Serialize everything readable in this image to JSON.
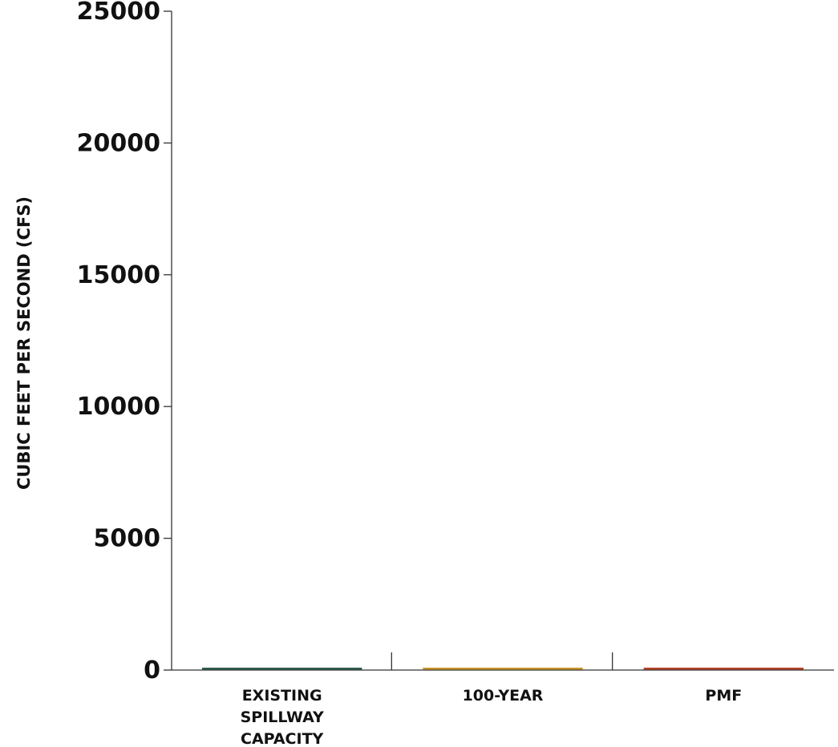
{
  "chart_data": {
    "type": "bar",
    "ylabel": "CUBIC FEET PER SECOND (CFS)",
    "xlabel": "",
    "ylim": [
      0,
      25000
    ],
    "yticks": [
      "0",
      "5000",
      "10000",
      "15000",
      "20000",
      "25000"
    ],
    "grid": false,
    "categories": [
      [
        "EXISTING",
        "SPILLWAY",
        "CAPACITY"
      ],
      [
        "100-YEAR"
      ],
      [
        "PMF"
      ]
    ],
    "values": [
      0,
      0,
      0
    ],
    "colors": [
      "#2f5d4f",
      "#c8962a",
      "#b5432a"
    ]
  }
}
